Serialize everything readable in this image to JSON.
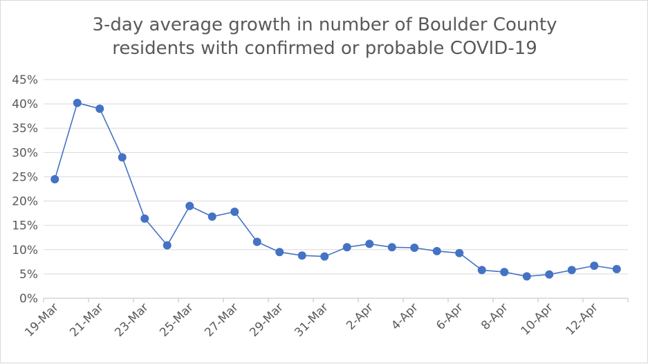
{
  "chart_data": {
    "type": "line",
    "title": [
      "3-day average growth in number of Boulder County",
      "residents with confirmed or probable COVID-19"
    ],
    "xlabel": "",
    "ylabel": "",
    "ylim": [
      0,
      45
    ],
    "y_ticks": [
      0,
      5,
      10,
      15,
      20,
      25,
      30,
      35,
      40,
      45
    ],
    "y_tick_labels": [
      "0%",
      "5%",
      "10%",
      "15%",
      "20%",
      "25%",
      "30%",
      "35%",
      "40%",
      "45%"
    ],
    "grid": "horizontal",
    "legend": "none",
    "line_color": "#4472C4",
    "marker_color": "#4472C4",
    "gridline_color": "#d9d9d9",
    "text_color": "#595959",
    "categories": [
      "19-Mar",
      "20-Mar",
      "21-Mar",
      "22-Mar",
      "23-Mar",
      "24-Mar",
      "25-Mar",
      "26-Mar",
      "27-Mar",
      "28-Mar",
      "29-Mar",
      "30-Mar",
      "31-Mar",
      "1-Apr",
      "2-Apr",
      "3-Apr",
      "4-Apr",
      "5-Apr",
      "6-Apr",
      "7-Apr",
      "8-Apr",
      "9-Apr",
      "10-Apr",
      "11-Apr",
      "12-Apr",
      "13-Apr"
    ],
    "tick_labels": [
      "19-Mar",
      "21-Mar",
      "23-Mar",
      "25-Mar",
      "27-Mar",
      "29-Mar",
      "31-Mar",
      "2-Apr",
      "4-Apr",
      "6-Apr",
      "8-Apr",
      "10-Apr",
      "12-Apr"
    ],
    "tick_label_indices": [
      0,
      2,
      4,
      6,
      8,
      10,
      12,
      14,
      16,
      18,
      20,
      22,
      24
    ],
    "series": [
      {
        "values": [
          24.5,
          40.2,
          39.0,
          29.0,
          16.4,
          10.9,
          19.0,
          16.8,
          17.8,
          11.6,
          9.5,
          8.8,
          8.6,
          10.5,
          11.2,
          10.5,
          10.4,
          9.7,
          9.3,
          5.8,
          5.4,
          4.5,
          4.9,
          5.8,
          6.7,
          6.0
        ]
      }
    ]
  }
}
